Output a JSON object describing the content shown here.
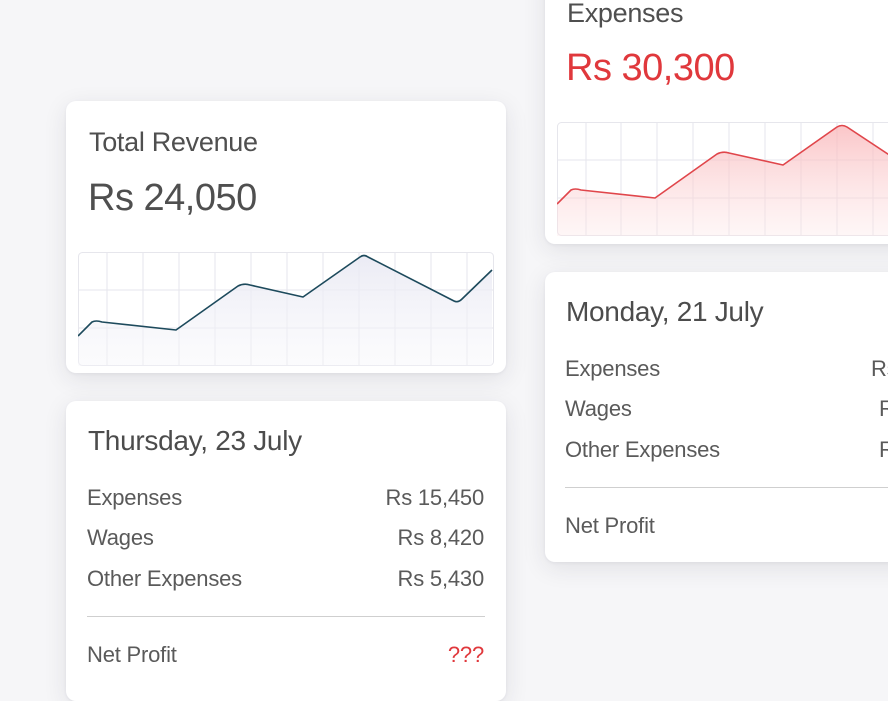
{
  "colors": {
    "revenue_line": "#1d4a5c",
    "expense_line": "#e0464b",
    "expense_text": "#e0383c",
    "grid": "#e8e8ee"
  },
  "revenue_card": {
    "title": "Total Revenue",
    "amount": "Rs 24,050"
  },
  "expenses_card": {
    "title": "Expenses",
    "amount": "Rs 30,300"
  },
  "thursday_card": {
    "title": "Thursday, 23 July",
    "rows": [
      {
        "label": "Expenses",
        "value": "Rs 15,450"
      },
      {
        "label": "Wages",
        "value": "Rs 8,420"
      },
      {
        "label": "Other Expenses",
        "value": "Rs 5,430"
      }
    ],
    "net_profit_label": "Net Profit",
    "net_profit_value": "???"
  },
  "monday_card": {
    "title": "Monday, 21 July",
    "rows": [
      {
        "label": "Expenses",
        "value": "Rs"
      },
      {
        "label": "Wages",
        "value": "R"
      },
      {
        "label": "Other Expenses",
        "value": "R"
      }
    ],
    "net_profit_label": "Net Profit"
  }
}
